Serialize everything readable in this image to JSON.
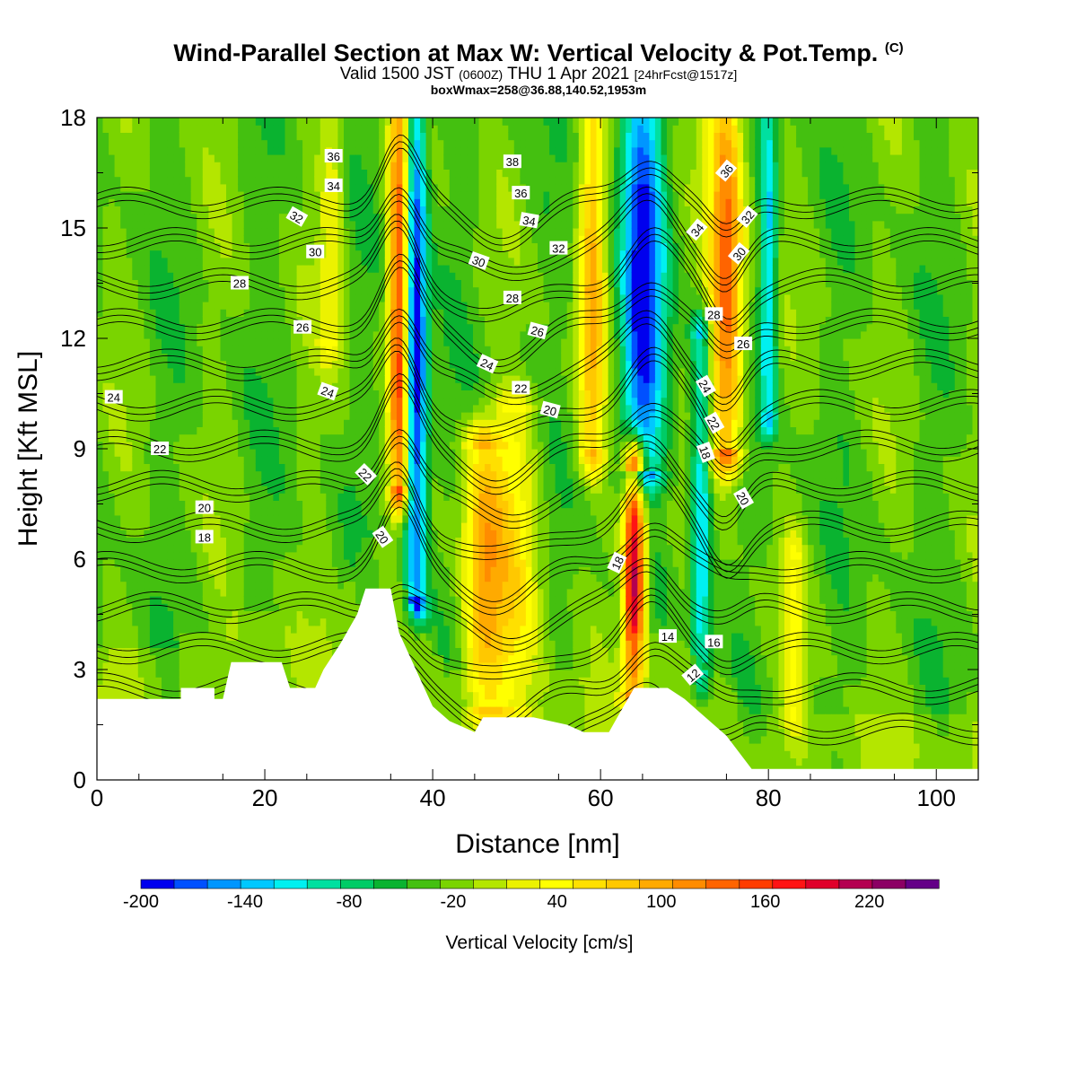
{
  "titles": {
    "main": "Wind-Parallel Section at Max W: Vertical Velocity & Pot.Temp.",
    "main_mark": "(C)",
    "valid_a": "Valid 1500 JST",
    "valid_b": "(0600Z)",
    "valid_c": "THU 1 Apr 2021",
    "valid_d": "[24hrFcst@1517z]",
    "box": "boxWmax=258@36.88,140.52,1953m"
  },
  "colors": {
    "scale": [
      "#0000ee",
      "#0050ff",
      "#0096ff",
      "#00c8ff",
      "#00f0f0",
      "#00e0a0",
      "#00cc66",
      "#0ab330",
      "#44c010",
      "#7ad400",
      "#b4e600",
      "#ecf200",
      "#ffff00",
      "#ffe000",
      "#ffc800",
      "#ffaa00",
      "#ff8c00",
      "#ff6400",
      "#ff3c00",
      "#ff1414",
      "#e0002a",
      "#b40050",
      "#8c0064",
      "#640087"
    ],
    "terrain": "#ffffff",
    "contour": "#000000"
  },
  "chart_data": {
    "type": "heatmap",
    "title": "Wind-Parallel Section at Max W: Vertical Velocity & Pot.Temp.",
    "xlabel": "Distance [nm]",
    "ylabel": "Height [Kft MSL]",
    "xlim": [
      0,
      105
    ],
    "ylim": [
      0,
      18
    ],
    "xticks": [
      0,
      20,
      40,
      60,
      80,
      100
    ],
    "yticks": [
      0,
      3,
      6,
      9,
      12,
      15,
      18
    ],
    "colorbar": {
      "label": "Vertical Velocity [cm/s]",
      "ticks": [
        "-200",
        "-140",
        "-80",
        "-20",
        "40",
        "100",
        "160",
        "220"
      ],
      "min": -200,
      "max": 260,
      "step": 20
    },
    "features": [
      {
        "x": 36,
        "z0": 8,
        "z1": 18,
        "w": 200,
        "width": 1.2,
        "note": "updraft"
      },
      {
        "x": 38,
        "z0": 5,
        "z1": 18,
        "w": -190,
        "width": 1.3,
        "note": "downdraft"
      },
      {
        "x": 46,
        "z0": 2,
        "z1": 9,
        "w": 120,
        "width": 2.5
      },
      {
        "x": 50,
        "z0": 2,
        "z1": 10,
        "w": 70,
        "width": 3
      },
      {
        "x": 59,
        "z0": 9,
        "z1": 18,
        "w": 120,
        "width": 1.5
      },
      {
        "x": 64,
        "z0": 2.5,
        "z1": 8.5,
        "w": 258,
        "width": 1.3
      },
      {
        "x": 65,
        "z0": 8.5,
        "z1": 18,
        "w": -170,
        "width": 2.5
      },
      {
        "x": 72,
        "z0": 3,
        "z1": 12,
        "w": -120,
        "width": 1.2
      },
      {
        "x": 75,
        "z0": 9,
        "z1": 18,
        "w": 180,
        "width": 2
      },
      {
        "x": 80,
        "z0": 10,
        "z1": 18,
        "w": -110,
        "width": 1
      },
      {
        "x": 28,
        "z0": 12,
        "z1": 18,
        "w": 60,
        "width": 1.5
      },
      {
        "x": 83,
        "z0": 2,
        "z1": 6,
        "w": 60,
        "width": 1.2
      }
    ],
    "terrain": [
      [
        0,
        2.2
      ],
      [
        10,
        2.2
      ],
      [
        10,
        2.5
      ],
      [
        14,
        2.5
      ],
      [
        14,
        2.2
      ],
      [
        15,
        2.2
      ],
      [
        16,
        3.2
      ],
      [
        22,
        3.2
      ],
      [
        23,
        2.5
      ],
      [
        26,
        2.5
      ],
      [
        27,
        3
      ],
      [
        29,
        3.7
      ],
      [
        31,
        4.5
      ],
      [
        32,
        5.2
      ],
      [
        35,
        5.2
      ],
      [
        36,
        4
      ],
      [
        38,
        3
      ],
      [
        40,
        2
      ],
      [
        42,
        1.6
      ],
      [
        44,
        1.4
      ],
      [
        45,
        1.3
      ],
      [
        46,
        1.7
      ],
      [
        48,
        1.7
      ],
      [
        52,
        1.7
      ],
      [
        56,
        1.5
      ],
      [
        58,
        1.3
      ],
      [
        61,
        1.3
      ],
      [
        62,
        1.7
      ],
      [
        64,
        2.5
      ],
      [
        68,
        2.5
      ],
      [
        70,
        2.2
      ],
      [
        72,
        1.8
      ],
      [
        75,
        1.2
      ],
      [
        77,
        0.6
      ],
      [
        78,
        0.3
      ],
      [
        105,
        0.3
      ]
    ],
    "theta_contours": [
      "12",
      "14",
      "16",
      "18",
      "20",
      "22",
      "24",
      "26",
      "28",
      "30",
      "32",
      "34",
      "36",
      "38"
    ],
    "contour_labels": [
      {
        "x": 28.2,
        "z": 16.95,
        "t": "36",
        "r": 0
      },
      {
        "x": 28.2,
        "z": 16.15,
        "t": "34",
        "r": 0
      },
      {
        "x": 23.8,
        "z": 15.3,
        "t": "32",
        "r": 30
      },
      {
        "x": 26,
        "z": 14.35,
        "t": "30",
        "r": 0
      },
      {
        "x": 17,
        "z": 13.5,
        "t": "28",
        "r": 0
      },
      {
        "x": 24.5,
        "z": 12.3,
        "t": "26",
        "r": 0
      },
      {
        "x": 27.5,
        "z": 10.55,
        "t": "24",
        "r": 20
      },
      {
        "x": 2,
        "z": 10.4,
        "t": "24",
        "r": 0
      },
      {
        "x": 7.5,
        "z": 9,
        "t": "22",
        "r": 0
      },
      {
        "x": 12.8,
        "z": 7.4,
        "t": "20",
        "r": 0
      },
      {
        "x": 12.8,
        "z": 6.6,
        "t": "18",
        "r": 0
      },
      {
        "x": 32,
        "z": 8.3,
        "t": "22",
        "r": 45
      },
      {
        "x": 34,
        "z": 6.6,
        "t": "20",
        "r": 55
      },
      {
        "x": 49.5,
        "z": 16.8,
        "t": "38",
        "r": 0
      },
      {
        "x": 50.5,
        "z": 15.95,
        "t": "36",
        "r": 0
      },
      {
        "x": 51.5,
        "z": 15.2,
        "t": "34",
        "r": 10
      },
      {
        "x": 55,
        "z": 14.45,
        "t": "32",
        "r": 0
      },
      {
        "x": 45.5,
        "z": 14.1,
        "t": "30",
        "r": 20
      },
      {
        "x": 49.5,
        "z": 13.1,
        "t": "28",
        "r": 0
      },
      {
        "x": 52.5,
        "z": 12.2,
        "t": "26",
        "r": 15
      },
      {
        "x": 46.5,
        "z": 11.3,
        "t": "24",
        "r": 25
      },
      {
        "x": 50.5,
        "z": 10.65,
        "t": "22",
        "r": 0
      },
      {
        "x": 54,
        "z": 10.05,
        "t": "20",
        "r": 15
      },
      {
        "x": 75,
        "z": 16.55,
        "t": "36",
        "r": -50
      },
      {
        "x": 77.5,
        "z": 15.3,
        "t": "32",
        "r": -50
      },
      {
        "x": 71.5,
        "z": 14.95,
        "t": "34",
        "r": -50
      },
      {
        "x": 76.5,
        "z": 14.3,
        "t": "30",
        "r": -50
      },
      {
        "x": 73.5,
        "z": 12.65,
        "t": "28",
        "r": 0
      },
      {
        "x": 77,
        "z": 11.85,
        "t": "26",
        "r": 0
      },
      {
        "x": 72.5,
        "z": 10.7,
        "t": "24",
        "r": 60
      },
      {
        "x": 73.5,
        "z": 9.7,
        "t": "22",
        "r": 60
      },
      {
        "x": 72.5,
        "z": 8.9,
        "t": "18",
        "r": 70
      },
      {
        "x": 77,
        "z": 7.65,
        "t": "20",
        "r": 60
      },
      {
        "x": 62,
        "z": 5.9,
        "t": "18",
        "r": -65
      },
      {
        "x": 68,
        "z": 3.9,
        "t": "14",
        "r": 0
      },
      {
        "x": 73.5,
        "z": 3.75,
        "t": "16",
        "r": 0
      },
      {
        "x": 71,
        "z": 2.85,
        "t": "12",
        "r": -40
      }
    ]
  }
}
